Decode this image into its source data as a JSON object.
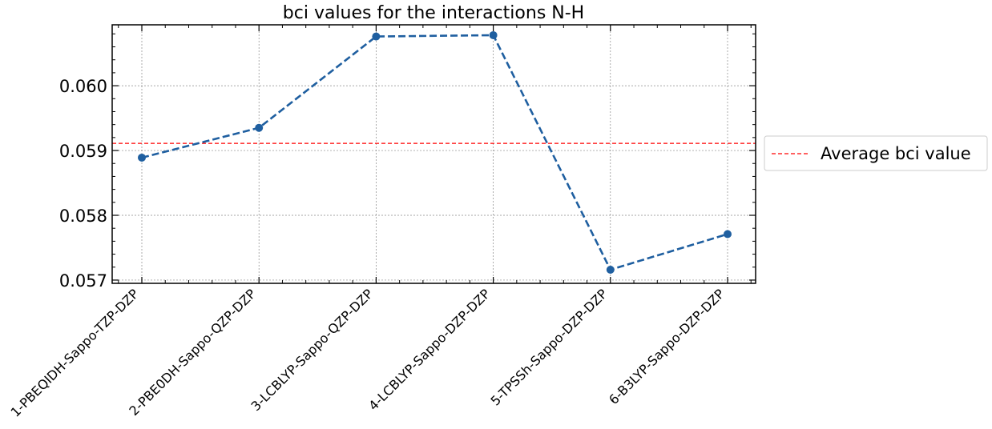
{
  "chart_data": {
    "type": "line",
    "title": "bci values for the interactions N-H",
    "xlabel": "",
    "ylabel": "",
    "categories": [
      "1-PBEQIDH-Sappo-TZP-DZP",
      "2-PBE0DH-Sappo-QZP-DZP",
      "3-LCBLYP-Sappo-QZP-DZP",
      "4-LCBLYP-Sappo-DZP-DZP",
      "5-TPSSh-Sappo-DZP-DZP",
      "6-B3LYP-Sappo-DZP-DZP"
    ],
    "series": [
      {
        "values": [
          0.05889,
          0.05935,
          0.06076,
          0.06078,
          0.05716,
          0.05771
        ],
        "color": "#1f5fa0",
        "style": "dashed",
        "marker": "circle"
      }
    ],
    "reference_line": {
      "name": "Average bci value",
      "value": 0.05911,
      "color": "#ff0000",
      "style": "dashed"
    },
    "y_ticks": [
      "0.057",
      "0.058",
      "0.059",
      "0.060"
    ],
    "ylim": [
      0.05695,
      0.06094
    ],
    "grid": true,
    "legend": "outside-right"
  }
}
